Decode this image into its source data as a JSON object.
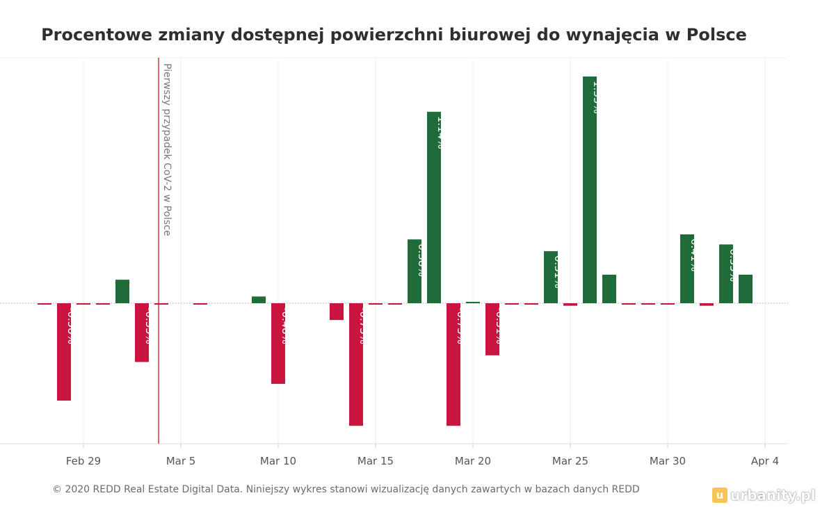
{
  "chart_data": {
    "type": "bar",
    "title": "Procentowe zmiany dostępnej powierzchni biurowej do wynajęcia w Polsce",
    "xlabel": "",
    "ylabel": "",
    "x_ticks": [
      "Feb 29",
      "Mar 5",
      "Mar 10",
      "Mar 15",
      "Mar 20",
      "Mar 25",
      "Mar 30",
      "Apr 4"
    ],
    "ylim": [
      -0.83,
      1.45
    ],
    "grid": "vertical",
    "colors": {
      "positive": "#1f6b3a",
      "negative": "#c8143f",
      "annotation_line": "#e06a6a",
      "zero_line": "#aaaaaa"
    },
    "annotation": {
      "date": "2020-03-04",
      "label": "Pierwszy przypadek CoV-2 w Polsce"
    },
    "bars": [
      {
        "date": "2020-02-27",
        "value": -0.005,
        "label": ""
      },
      {
        "date": "2020-02-28",
        "value": -0.58,
        "label": "-0.58%"
      },
      {
        "date": "2020-02-29",
        "value": -0.005,
        "label": ""
      },
      {
        "date": "2020-03-01",
        "value": -0.005,
        "label": ""
      },
      {
        "date": "2020-03-02",
        "value": 0.14,
        "label": ""
      },
      {
        "date": "2020-03-03",
        "value": -0.35,
        "label": "-0.35%"
      },
      {
        "date": "2020-03-04",
        "value": -0.005,
        "label": ""
      },
      {
        "date": "2020-03-06",
        "value": -0.008,
        "label": ""
      },
      {
        "date": "2020-03-09",
        "value": 0.04,
        "label": ""
      },
      {
        "date": "2020-03-10",
        "value": -0.48,
        "label": "-0.48%"
      },
      {
        "date": "2020-03-13",
        "value": -0.1,
        "label": ""
      },
      {
        "date": "2020-03-14",
        "value": -0.73,
        "label": "-0.73%"
      },
      {
        "date": "2020-03-15",
        "value": -0.005,
        "label": ""
      },
      {
        "date": "2020-03-16",
        "value": -0.005,
        "label": ""
      },
      {
        "date": "2020-03-17",
        "value": 0.38,
        "label": "0.38%"
      },
      {
        "date": "2020-03-18",
        "value": 1.14,
        "label": "1.14%"
      },
      {
        "date": "2020-03-19",
        "value": -0.73,
        "label": "-0.73%"
      },
      {
        "date": "2020-03-20",
        "value": 0.005,
        "label": ""
      },
      {
        "date": "2020-03-21",
        "value": -0.31,
        "label": "-0.31%"
      },
      {
        "date": "2020-03-22",
        "value": -0.005,
        "label": ""
      },
      {
        "date": "2020-03-23",
        "value": -0.005,
        "label": ""
      },
      {
        "date": "2020-03-24",
        "value": 0.31,
        "label": "0.31%"
      },
      {
        "date": "2020-03-25",
        "value": -0.015,
        "label": ""
      },
      {
        "date": "2020-03-26",
        "value": 1.35,
        "label": "1.35%"
      },
      {
        "date": "2020-03-27",
        "value": 0.17,
        "label": ""
      },
      {
        "date": "2020-03-28",
        "value": -0.005,
        "label": ""
      },
      {
        "date": "2020-03-29",
        "value": -0.005,
        "label": ""
      },
      {
        "date": "2020-03-30",
        "value": -0.005,
        "label": ""
      },
      {
        "date": "2020-03-31",
        "value": 0.41,
        "label": "0.41%"
      },
      {
        "date": "2020-04-01",
        "value": -0.015,
        "label": ""
      },
      {
        "date": "2020-04-02",
        "value": 0.35,
        "label": "0.35%"
      },
      {
        "date": "2020-04-03",
        "value": 0.17,
        "label": ""
      }
    ]
  },
  "footer": {
    "text": "© 2020 REDD Real Estate Digital Data. Niniejszy wykres stanowi wizualizację danych zawartych w bazach danych REDD"
  },
  "watermark": {
    "logo_letter": "u",
    "text": "urbanity.pl"
  }
}
